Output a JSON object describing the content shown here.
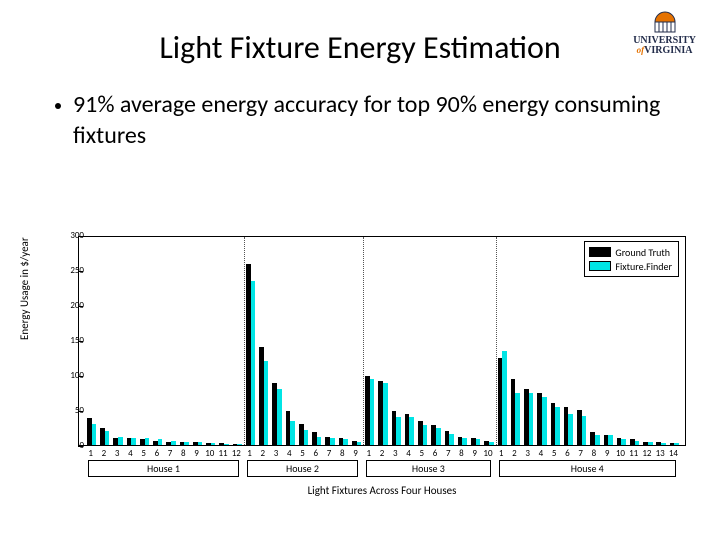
{
  "logo": {
    "top": "UNIVERSITY",
    "bottom": "VIRGINIA",
    "of": "of"
  },
  "title": {
    "text": "Light Fixture Energy Estimation",
    "fontsize": 32,
    "color": "#000000",
    "weight": 400
  },
  "bullet": {
    "text": "91% average energy accuracy for top 90% energy consuming fixtures",
    "fontsize": 24,
    "color": "#000000"
  },
  "chart": {
    "type": "grouped-bar",
    "ylabel": "Energy Usage in $/year",
    "xlabel": "Light Fixtures Across Four Houses",
    "label_fontsize": 11,
    "tick_fontsize": 9,
    "ylim": [
      0,
      300
    ],
    "ytick_step": 50,
    "yticks": [
      0,
      50,
      100,
      150,
      200,
      250,
      300
    ],
    "background_color": "#ffffff",
    "border_color": "#000000",
    "bar_colors": {
      "ground_truth": "#000000",
      "fixture_finder": "#00e5e5"
    },
    "bar_pair_width": 6,
    "bar_gap": 4,
    "legend": {
      "items": [
        {
          "label": "Ground Truth",
          "color": "#000000"
        },
        {
          "label": "Fixture.Finder",
          "color": "#00e5e5"
        }
      ]
    },
    "houses": [
      {
        "label": "House 1",
        "fixtures": [
          {
            "x": 1,
            "gt": 38,
            "ff": 30
          },
          {
            "x": 2,
            "gt": 25,
            "ff": 20
          },
          {
            "x": 3,
            "gt": 10,
            "ff": 12
          },
          {
            "x": 4,
            "gt": 10,
            "ff": 10
          },
          {
            "x": 5,
            "gt": 8,
            "ff": 10
          },
          {
            "x": 6,
            "gt": 6,
            "ff": 8
          },
          {
            "x": 7,
            "gt": 5,
            "ff": 6
          },
          {
            "x": 8,
            "gt": 5,
            "ff": 5
          },
          {
            "x": 9,
            "gt": 4,
            "ff": 4
          },
          {
            "x": 10,
            "gt": 3,
            "ff": 3
          },
          {
            "x": 11,
            "gt": 3,
            "ff": 2
          },
          {
            "x": 12,
            "gt": 2,
            "ff": 2
          }
        ]
      },
      {
        "label": "House 2",
        "fixtures": [
          {
            "x": 1,
            "gt": 258,
            "ff": 235
          },
          {
            "x": 2,
            "gt": 140,
            "ff": 120
          },
          {
            "x": 3,
            "gt": 88,
            "ff": 80
          },
          {
            "x": 4,
            "gt": 48,
            "ff": 35
          },
          {
            "x": 5,
            "gt": 30,
            "ff": 22
          },
          {
            "x": 6,
            "gt": 18,
            "ff": 12
          },
          {
            "x": 7,
            "gt": 12,
            "ff": 10
          },
          {
            "x": 8,
            "gt": 10,
            "ff": 8
          },
          {
            "x": 9,
            "gt": 6,
            "ff": 5
          }
        ]
      },
      {
        "label": "House 3",
        "fixtures": [
          {
            "x": 1,
            "gt": 98,
            "ff": 95
          },
          {
            "x": 2,
            "gt": 92,
            "ff": 88
          },
          {
            "x": 3,
            "gt": 48,
            "ff": 40
          },
          {
            "x": 4,
            "gt": 45,
            "ff": 40
          },
          {
            "x": 5,
            "gt": 35,
            "ff": 28
          },
          {
            "x": 6,
            "gt": 28,
            "ff": 25
          },
          {
            "x": 7,
            "gt": 20,
            "ff": 16
          },
          {
            "x": 8,
            "gt": 12,
            "ff": 10
          },
          {
            "x": 9,
            "gt": 10,
            "ff": 8
          },
          {
            "x": 10,
            "gt": 6,
            "ff": 5
          }
        ]
      },
      {
        "label": "House 4",
        "fixtures": [
          {
            "x": 1,
            "gt": 125,
            "ff": 135
          },
          {
            "x": 2,
            "gt": 95,
            "ff": 75
          },
          {
            "x": 3,
            "gt": 80,
            "ff": 75
          },
          {
            "x": 4,
            "gt": 75,
            "ff": 68
          },
          {
            "x": 5,
            "gt": 60,
            "ff": 55
          },
          {
            "x": 6,
            "gt": 55,
            "ff": 45
          },
          {
            "x": 7,
            "gt": 50,
            "ff": 42
          },
          {
            "x": 8,
            "gt": 18,
            "ff": 15
          },
          {
            "x": 9,
            "gt": 15,
            "ff": 15
          },
          {
            "x": 10,
            "gt": 10,
            "ff": 8
          },
          {
            "x": 11,
            "gt": 8,
            "ff": 6
          },
          {
            "x": 12,
            "gt": 5,
            "ff": 5
          },
          {
            "x": 13,
            "gt": 4,
            "ff": 3
          },
          {
            "x": 14,
            "gt": 3,
            "ff": 3
          }
        ]
      }
    ]
  }
}
